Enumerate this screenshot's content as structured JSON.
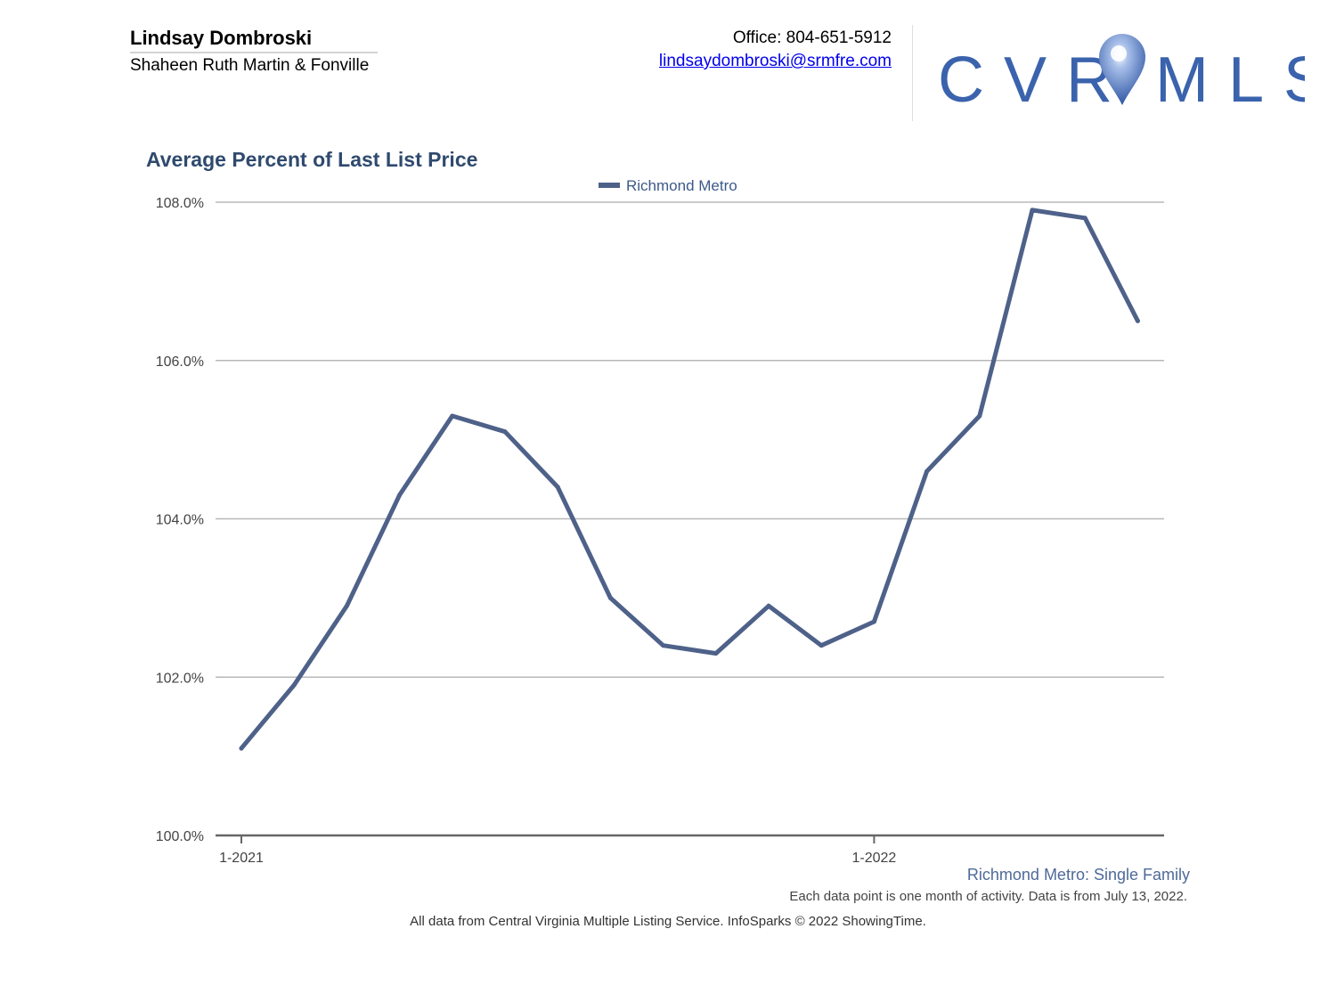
{
  "header": {
    "agent_name": "Lindsay Dombroski",
    "agent_company": "Shaheen Ruth Martin & Fonville",
    "office": "Office: 804-651-5912",
    "email": "lindsaydombroski@srmfre.com"
  },
  "logo": {
    "letters_left": "CVR",
    "letters_right": "MLS",
    "icon": "map-pin-icon",
    "color": "#3b63ad"
  },
  "footer": {
    "series_caption": "Richmond Metro: Single Family",
    "note": "Each data point is one month of activity. Data is from July 13, 2022.",
    "source": "All data from Central Virginia Multiple Listing Service. InfoSparks © 2022 ShowingTime."
  },
  "chart_data": {
    "type": "line",
    "title": "Average Percent of Last List Price",
    "xlabel": "",
    "ylabel": "",
    "x_tick_labels": [
      "1-2021",
      "1-2022"
    ],
    "x": [
      "1-2021",
      "2-2021",
      "3-2021",
      "4-2021",
      "5-2021",
      "6-2021",
      "7-2021",
      "8-2021",
      "9-2021",
      "10-2021",
      "11-2021",
      "12-2021",
      "1-2022",
      "2-2022",
      "3-2022",
      "4-2022",
      "5-2022",
      "6-2022"
    ],
    "series": [
      {
        "name": "Richmond Metro",
        "color": "#4e6189",
        "values": [
          101.1,
          101.9,
          102.9,
          104.3,
          105.3,
          105.1,
          104.4,
          103.0,
          102.4,
          102.3,
          102.9,
          102.4,
          102.7,
          104.6,
          105.3,
          107.9,
          107.8,
          106.5
        ]
      }
    ],
    "ylim": [
      100,
      108
    ],
    "y_ticks": [
      "100.0%",
      "102.0%",
      "104.0%",
      "106.0%",
      "108.0%"
    ],
    "grid": true,
    "legend": "top-center"
  }
}
